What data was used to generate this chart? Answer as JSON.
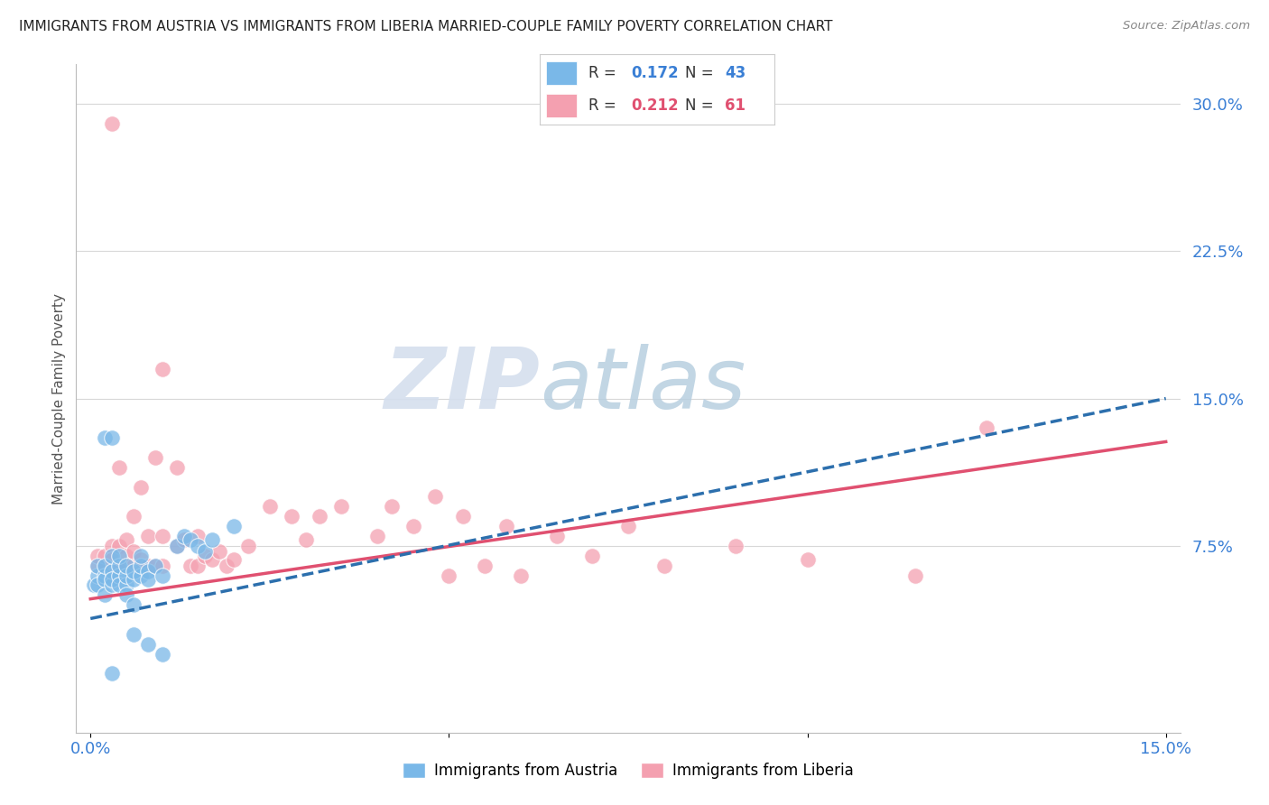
{
  "title": "IMMIGRANTS FROM AUSTRIA VS IMMIGRANTS FROM LIBERIA MARRIED-COUPLE FAMILY POVERTY CORRELATION CHART",
  "source": "Source: ZipAtlas.com",
  "ylabel": "Married-Couple Family Poverty",
  "xlim": [
    -0.002,
    0.152
  ],
  "ylim": [
    -0.02,
    0.32
  ],
  "xticks": [
    0.0,
    0.05,
    0.1,
    0.15
  ],
  "xticklabels": [
    "0.0%",
    "",
    "",
    "15.0%"
  ],
  "ytick_right_labels": [
    "30.0%",
    "22.5%",
    "15.0%",
    "7.5%"
  ],
  "ytick_right_values": [
    0.3,
    0.225,
    0.15,
    0.075
  ],
  "austria_color": "#7ab8e8",
  "liberia_color": "#f4a0b0",
  "austria_line_color": "#2c6fad",
  "liberia_line_color": "#e05070",
  "legend_austria_R": "0.172",
  "legend_austria_N": "43",
  "legend_liberia_R": "0.212",
  "legend_liberia_N": "61",
  "austria_line_x0": 0.0,
  "austria_line_y0": 0.038,
  "austria_line_x1": 0.15,
  "austria_line_y1": 0.15,
  "liberia_line_x0": 0.0,
  "liberia_line_y0": 0.048,
  "liberia_line_x1": 0.15,
  "liberia_line_y1": 0.128,
  "grid_color": "#d8d8d8",
  "background_color": "#ffffff",
  "watermark_zip_color": "#dde5f0",
  "watermark_atlas_color": "#c8d8e8"
}
